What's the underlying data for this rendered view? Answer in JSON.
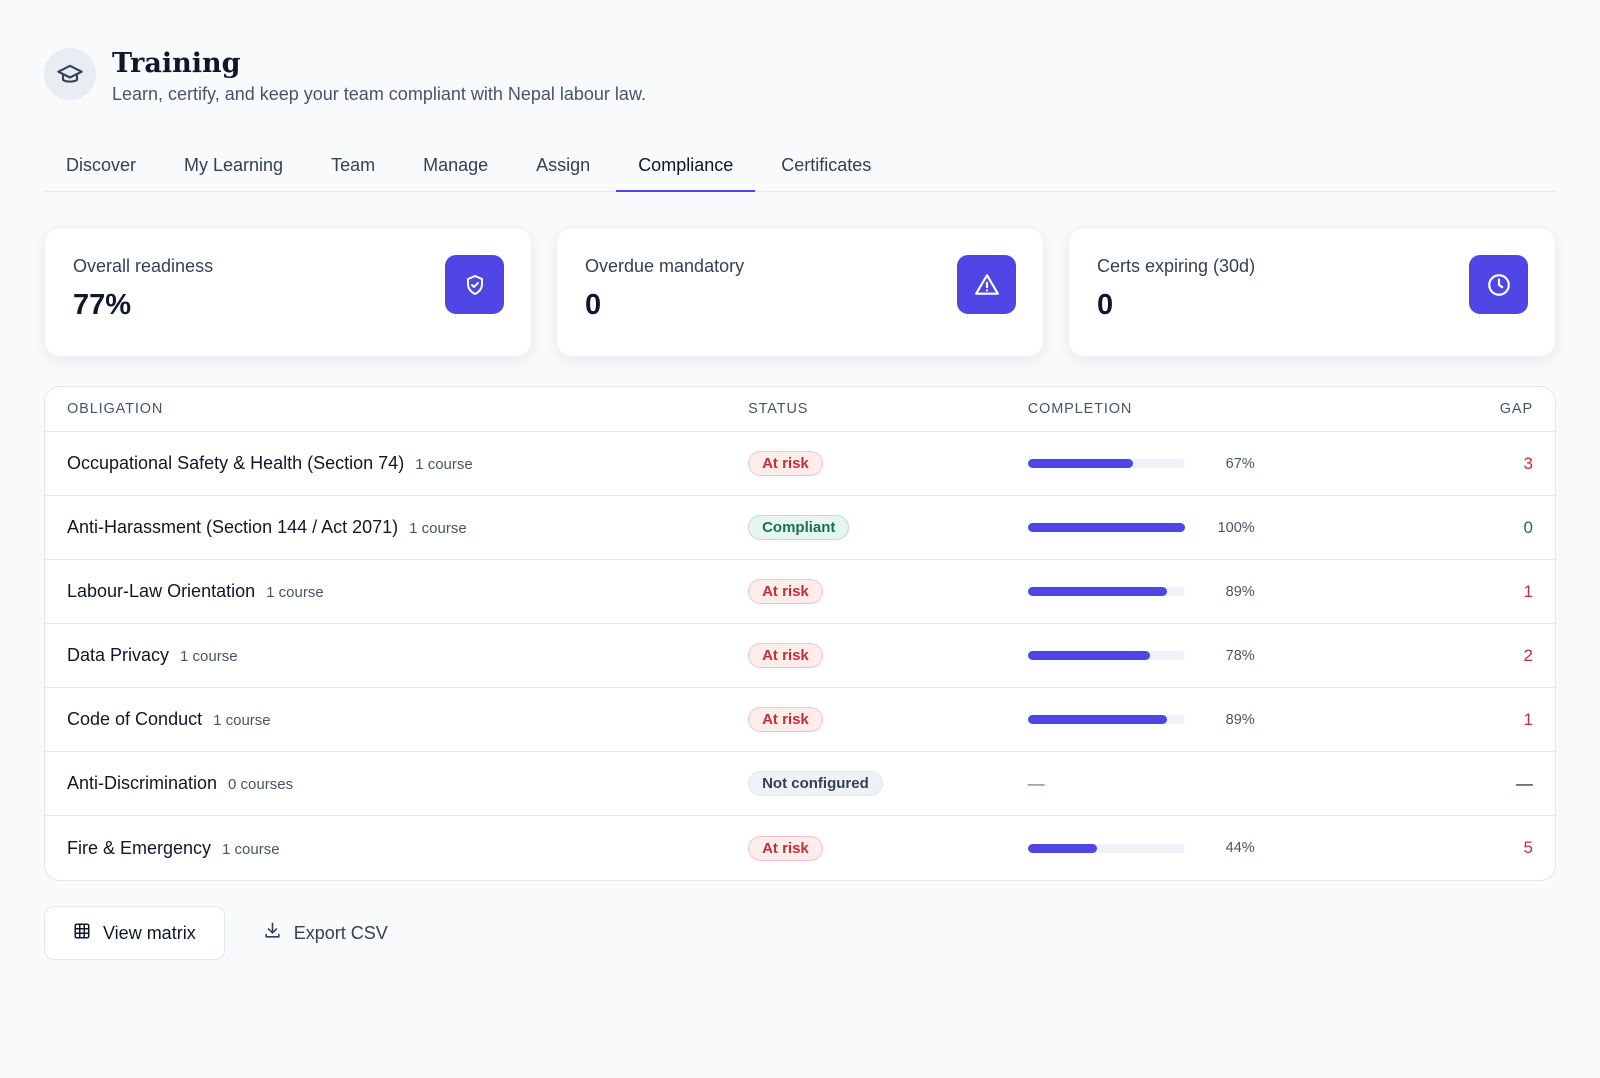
{
  "header": {
    "icon": "graduation-cap-icon",
    "title": "Training",
    "subtitle": "Learn, certify, and keep your team compliant with Nepal labour law."
  },
  "tabs": [
    {
      "label": "Discover",
      "active": false
    },
    {
      "label": "My Learning",
      "active": false
    },
    {
      "label": "Team",
      "active": false
    },
    {
      "label": "Manage",
      "active": false
    },
    {
      "label": "Assign",
      "active": false
    },
    {
      "label": "Compliance",
      "active": true
    },
    {
      "label": "Certificates",
      "active": false
    }
  ],
  "stats": [
    {
      "label": "Overall readiness",
      "value": "77%",
      "icon": "shield-check-icon"
    },
    {
      "label": "Overdue mandatory",
      "value": "0",
      "icon": "warning-triangle-icon"
    },
    {
      "label": "Certs expiring (30d)",
      "value": "0",
      "icon": "clock-icon"
    }
  ],
  "table": {
    "columns": {
      "obligation": "OBLIGATION",
      "status": "STATUS",
      "completion": "COMPLETION",
      "gap": "GAP"
    },
    "rows": [
      {
        "name": "Occupational Safety & Health (Section 74)",
        "count": "1 course",
        "status": "At risk",
        "status_kind": "atrisk",
        "completion": 0.67,
        "completion_label": "67%",
        "gap": "3",
        "gap_kind": "red"
      },
      {
        "name": "Anti-Harassment (Section 144 / Act 2071)",
        "count": "1 course",
        "status": "Compliant",
        "status_kind": "compliant",
        "completion": 1.0,
        "completion_label": "100%",
        "gap": "0",
        "gap_kind": "green"
      },
      {
        "name": "Labour-Law Orientation",
        "count": "1 course",
        "status": "At risk",
        "status_kind": "atrisk",
        "completion": 0.89,
        "completion_label": "89%",
        "gap": "1",
        "gap_kind": "red"
      },
      {
        "name": "Data Privacy",
        "count": "1 course",
        "status": "At risk",
        "status_kind": "atrisk",
        "completion": 0.78,
        "completion_label": "78%",
        "gap": "2",
        "gap_kind": "red"
      },
      {
        "name": "Code of Conduct",
        "count": "1 course",
        "status": "At risk",
        "status_kind": "atrisk",
        "completion": 0.89,
        "completion_label": "89%",
        "gap": "1",
        "gap_kind": "red"
      },
      {
        "name": "Anti-Discrimination",
        "count": "0 courses",
        "status": "Not configured",
        "status_kind": "notcfg",
        "completion": null,
        "completion_label": "—",
        "gap": "—",
        "gap_kind": "dash"
      },
      {
        "name": "Fire & Emergency",
        "count": "1 course",
        "status": "At risk",
        "status_kind": "atrisk",
        "completion": 0.44,
        "completion_label": "44%",
        "gap": "5",
        "gap_kind": "red"
      }
    ]
  },
  "actions": {
    "view_matrix": {
      "label": "View matrix",
      "icon": "grid-icon"
    },
    "export_csv": {
      "label": "Export CSV",
      "icon": "download-icon"
    }
  },
  "colors": {
    "accent": "#4f46e5",
    "danger": "#c53030",
    "success": "#16734a"
  }
}
